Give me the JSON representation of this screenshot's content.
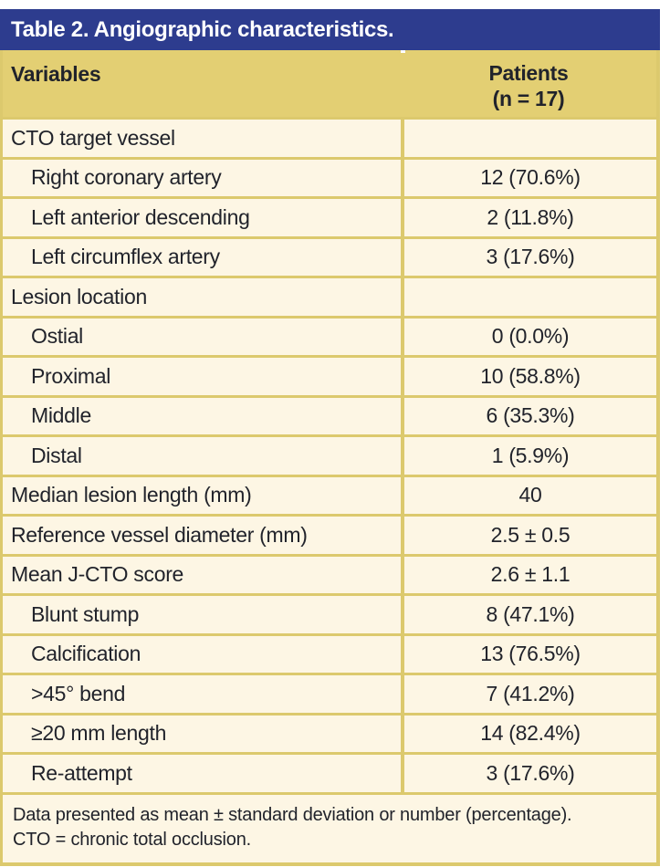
{
  "table": {
    "title": "Table 2. Angiographic characteristics.",
    "columns": {
      "variables": "Variables",
      "patients_line1": "Patients",
      "patients_line2": "(n = 17)"
    },
    "rows": [
      {
        "label": "CTO target vessel",
        "value": "",
        "indent": false
      },
      {
        "label": "Right coronary artery",
        "value": "12 (70.6%)",
        "indent": true
      },
      {
        "label": "Left anterior descending",
        "value": "2 (11.8%)",
        "indent": true
      },
      {
        "label": "Left circumflex artery",
        "value": "3 (17.6%)",
        "indent": true
      },
      {
        "label": "Lesion location",
        "value": "",
        "indent": false
      },
      {
        "label": "Ostial",
        "value": "0 (0.0%)",
        "indent": true
      },
      {
        "label": "Proximal",
        "value": "10 (58.8%)",
        "indent": true
      },
      {
        "label": "Middle",
        "value": "6 (35.3%)",
        "indent": true
      },
      {
        "label": "Distal",
        "value": "1 (5.9%)",
        "indent": true
      },
      {
        "label": "Median lesion length (mm)",
        "value": "40",
        "indent": false
      },
      {
        "label": "Reference vessel diameter (mm)",
        "value": "2.5 ± 0.5",
        "indent": false
      },
      {
        "label": "Mean J-CTO score",
        "value": "2.6 ± 1.1",
        "indent": false
      },
      {
        "label": "Blunt stump",
        "value": "8 (47.1%)",
        "indent": true
      },
      {
        "label": "Calcification",
        "value": "13 (76.5%)",
        "indent": true
      },
      {
        "label": ">45° bend",
        "value": "7 (41.2%)",
        "indent": true
      },
      {
        "label": "≥20 mm length",
        "value": "14 (82.4%)",
        "indent": true
      },
      {
        "label": "Re-attempt",
        "value": "3 (17.6%)",
        "indent": true
      }
    ],
    "footnotes": [
      "Data presented as mean ± standard deviation or number (percentage).",
      "CTO = chronic total occlusion."
    ]
  },
  "colors": {
    "header_bar": "#2d3c8e",
    "column_header_bg": "#e3cf73",
    "row_bg": "#fdf6e4",
    "border": "#dcc96d",
    "text": "#21232b",
    "title_text": "#ffffff"
  }
}
